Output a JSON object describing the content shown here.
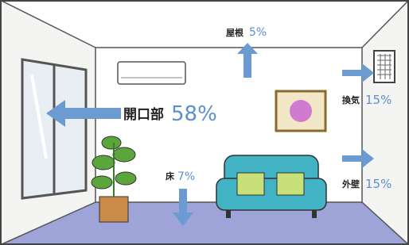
{
  "items": [
    {
      "label": "屋根",
      "value": "5%"
    },
    {
      "label": "開口部",
      "value": "58%"
    },
    {
      "label": "換気",
      "value": "15%"
    },
    {
      "label": "床",
      "value": "7%"
    },
    {
      "label": "外壁",
      "value": "15%"
    }
  ]
}
